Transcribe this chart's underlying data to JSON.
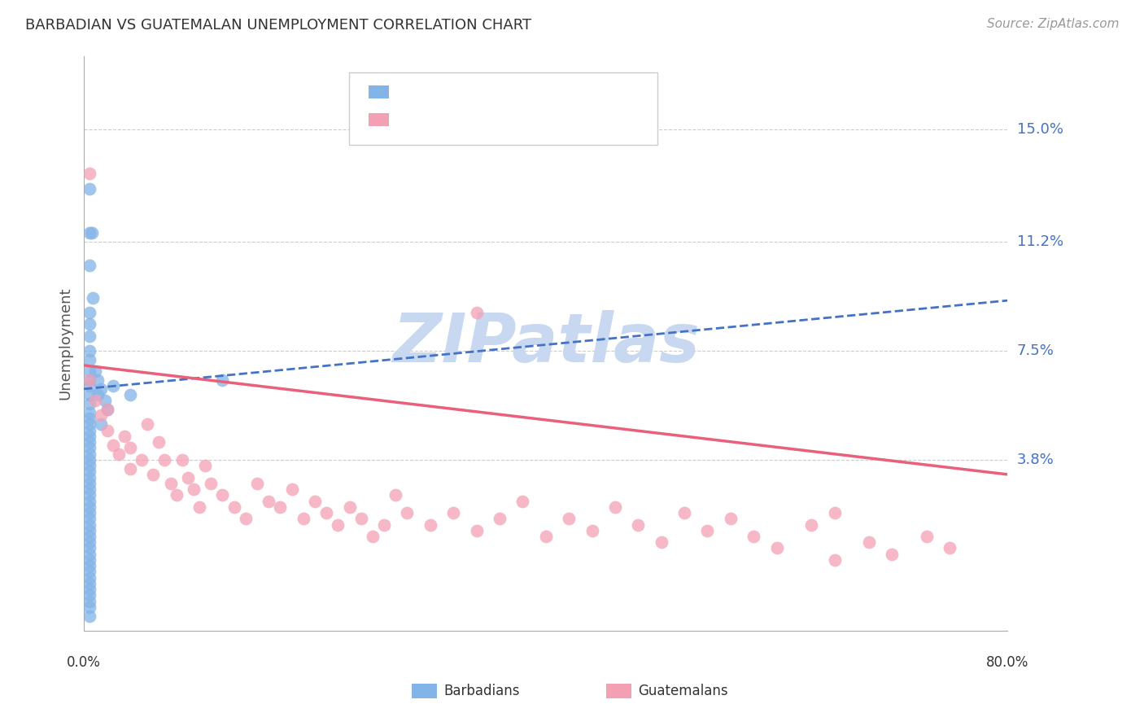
{
  "title": "BARBADIAN VS GUATEMALAN UNEMPLOYMENT CORRELATION CHART",
  "source": "Source: ZipAtlas.com",
  "ylabel": "Unemployment",
  "ytick_labels": [
    "15.0%",
    "11.2%",
    "7.5%",
    "3.8%"
  ],
  "ytick_values": [
    0.15,
    0.112,
    0.075,
    0.038
  ],
  "xmin": 0.0,
  "xmax": 0.8,
  "ymin": -0.02,
  "ymax": 0.175,
  "blue_color": "#82B4E8",
  "pink_color": "#F4A0B4",
  "blue_line_color": "#4472C4",
  "pink_line_color": "#E8607A",
  "watermark_text": "ZIPatlas",
  "watermark_color": "#C8D8F0",
  "blue_x": [
    0.005,
    0.005,
    0.007,
    0.005,
    0.008,
    0.005,
    0.005,
    0.005,
    0.005,
    0.005,
    0.005,
    0.005,
    0.005,
    0.005,
    0.005,
    0.005,
    0.005,
    0.005,
    0.005,
    0.005,
    0.005,
    0.005,
    0.005,
    0.005,
    0.005,
    0.005,
    0.005,
    0.005,
    0.005,
    0.005,
    0.005,
    0.005,
    0.005,
    0.005,
    0.005,
    0.005,
    0.005,
    0.005,
    0.005,
    0.005,
    0.005,
    0.005,
    0.005,
    0.005,
    0.005,
    0.005,
    0.005,
    0.005,
    0.005,
    0.005,
    0.01,
    0.012,
    0.015,
    0.012,
    0.018,
    0.02,
    0.015,
    0.025,
    0.04,
    0.12
  ],
  "blue_y": [
    0.13,
    0.115,
    0.115,
    0.104,
    0.093,
    0.088,
    0.084,
    0.08,
    0.075,
    0.072,
    0.068,
    0.065,
    0.063,
    0.06,
    0.057,
    0.054,
    0.052,
    0.05,
    0.048,
    0.046,
    0.044,
    0.042,
    0.04,
    0.038,
    0.036,
    0.034,
    0.032,
    0.03,
    0.028,
    0.026,
    0.024,
    0.022,
    0.02,
    0.018,
    0.016,
    0.014,
    0.012,
    0.01,
    0.008,
    0.006,
    0.004,
    0.002,
    0.0,
    -0.002,
    -0.004,
    -0.006,
    -0.008,
    -0.01,
    -0.012,
    -0.015,
    0.068,
    0.065,
    0.062,
    0.06,
    0.058,
    0.055,
    0.05,
    0.063,
    0.06,
    0.065
  ],
  "pink_x": [
    0.005,
    0.34,
    0.005,
    0.01,
    0.015,
    0.02,
    0.02,
    0.025,
    0.03,
    0.035,
    0.04,
    0.04,
    0.05,
    0.055,
    0.06,
    0.065,
    0.07,
    0.075,
    0.08,
    0.085,
    0.09,
    0.095,
    0.1,
    0.105,
    0.11,
    0.12,
    0.13,
    0.14,
    0.15,
    0.16,
    0.17,
    0.18,
    0.19,
    0.2,
    0.21,
    0.22,
    0.23,
    0.24,
    0.25,
    0.26,
    0.27,
    0.28,
    0.3,
    0.32,
    0.34,
    0.36,
    0.38,
    0.4,
    0.42,
    0.44,
    0.46,
    0.48,
    0.5,
    0.52,
    0.54,
    0.56,
    0.58,
    0.6,
    0.63,
    0.65,
    0.68,
    0.7,
    0.73,
    0.75,
    0.65
  ],
  "pink_y": [
    0.135,
    0.088,
    0.065,
    0.058,
    0.053,
    0.048,
    0.055,
    0.043,
    0.04,
    0.046,
    0.035,
    0.042,
    0.038,
    0.05,
    0.033,
    0.044,
    0.038,
    0.03,
    0.026,
    0.038,
    0.032,
    0.028,
    0.022,
    0.036,
    0.03,
    0.026,
    0.022,
    0.018,
    0.03,
    0.024,
    0.022,
    0.028,
    0.018,
    0.024,
    0.02,
    0.016,
    0.022,
    0.018,
    0.012,
    0.016,
    0.026,
    0.02,
    0.016,
    0.02,
    0.014,
    0.018,
    0.024,
    0.012,
    0.018,
    0.014,
    0.022,
    0.016,
    0.01,
    0.02,
    0.014,
    0.018,
    0.012,
    0.008,
    0.016,
    0.004,
    0.01,
    0.006,
    0.012,
    0.008,
    0.02
  ],
  "blue_trend_x": [
    0.0,
    0.8
  ],
  "blue_trend_y": [
    0.062,
    0.092
  ],
  "pink_trend_x": [
    0.0,
    0.8
  ],
  "pink_trend_y": [
    0.07,
    0.033
  ]
}
